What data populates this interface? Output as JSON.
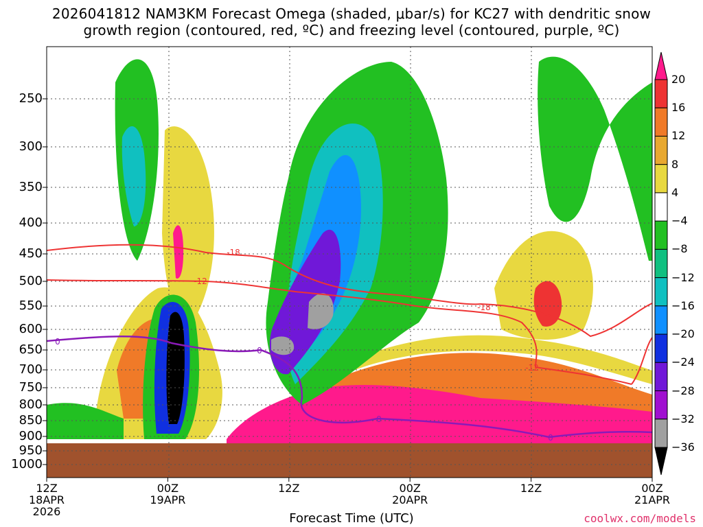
{
  "title_line1": "2026041812 NAM3KM Forecast Omega (shaded, μbar/s) for KC27 with dendritic snow",
  "title_line2": "growth region (contoured, red, ºC) and freezing level (contoured, purple, ºC)",
  "xaxis_title": "Forecast Time (UTC)",
  "credit": "coolwx.com/models",
  "chart_data": {
    "type": "heatmap",
    "y_ticks": [
      "250",
      "300",
      "350",
      "400",
      "450",
      "500",
      "550",
      "600",
      "650",
      "700",
      "750",
      "800",
      "850",
      "900",
      "950",
      "1000"
    ],
    "x_ticks": [
      {
        "hour": 0,
        "lines": [
          "12Z",
          "18APR",
          "2026"
        ]
      },
      {
        "hour": 12,
        "lines": [
          "00Z",
          "19APR"
        ]
      },
      {
        "hour": 24,
        "lines": [
          "12Z",
          ""
        ]
      },
      {
        "hour": 36,
        "lines": [
          "00Z",
          "20APR"
        ]
      },
      {
        "hour": 48,
        "lines": [
          "12Z",
          ""
        ]
      },
      {
        "hour": 60,
        "lines": [
          "00Z",
          "21APR"
        ]
      }
    ],
    "colorbar": {
      "labels": [
        "20",
        "16",
        "12",
        "8",
        "4",
        "−4",
        "−8",
        "−12",
        "−16",
        "−20",
        "−24",
        "−28",
        "−32",
        "−36"
      ],
      "colors": [
        "#ff1a8c",
        "#ee3333",
        "#f07a28",
        "#e8a830",
        "#e8d840",
        "#ffffff",
        "#22c022",
        "#10c080",
        "#10c0c0",
        "#1090ff",
        "#1030e0",
        "#7018d8",
        "#a010d0",
        "#a0a0a0",
        "#000000"
      ]
    },
    "contours": {
      "dgz_labels": [
        "-18",
        "-12",
        "-18",
        "-12"
      ],
      "freezing_labels": [
        "0",
        "0",
        "0",
        "0"
      ]
    }
  }
}
